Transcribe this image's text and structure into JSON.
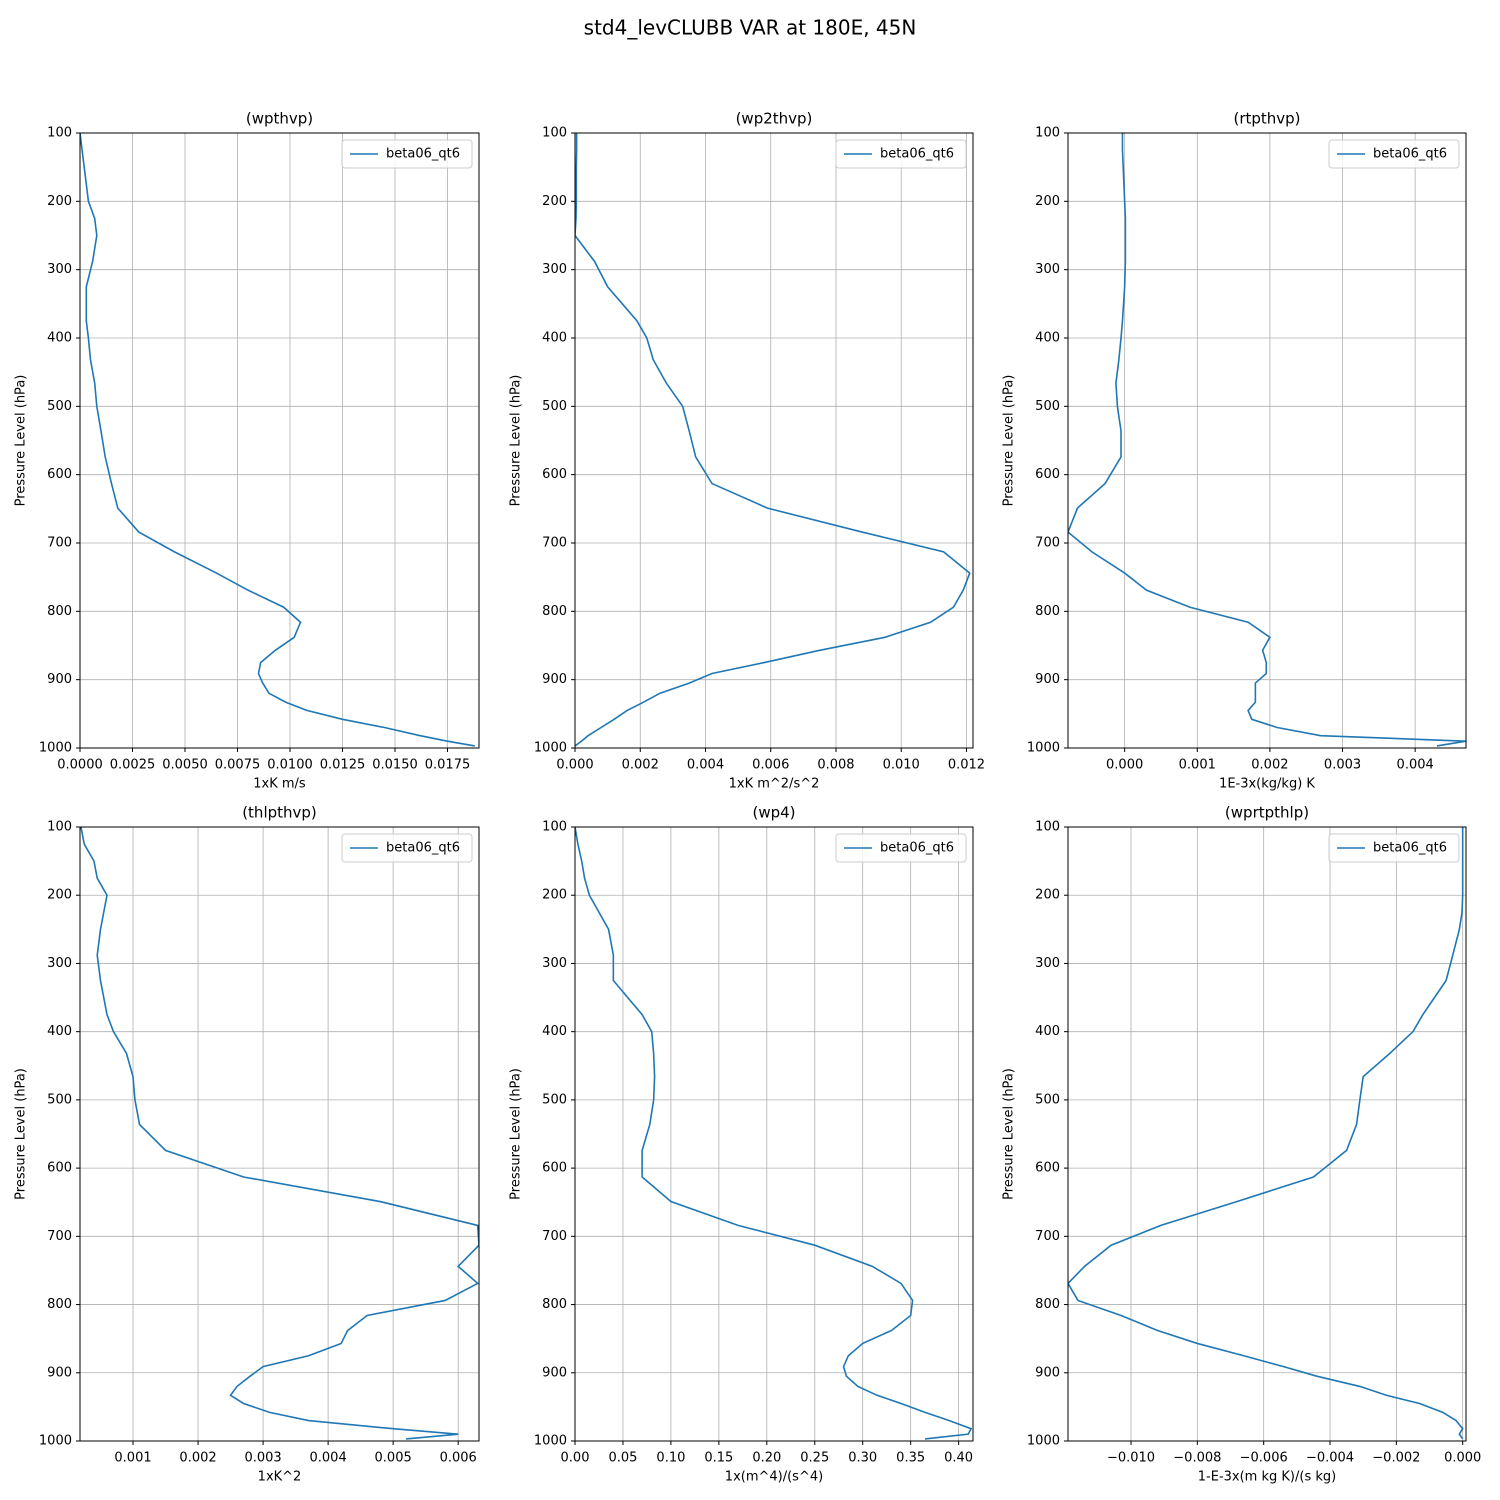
{
  "title": "std4_levCLUBB VAR at 180E, 45N",
  "chart_data": [
    {
      "type": "line",
      "title": "(wpthvp)",
      "xlabel": "1xK m/s",
      "ylabel": "Pressure Level (hPa)",
      "legend": "upper right",
      "grid": true,
      "y_inverted": true,
      "y": [
        100,
        125,
        150,
        175,
        200,
        225,
        250,
        288,
        325,
        375,
        400,
        432,
        466,
        500,
        536,
        574,
        613,
        649,
        684,
        713,
        744,
        769,
        794,
        816,
        838,
        857,
        875,
        891,
        905,
        920,
        933,
        945,
        958,
        970,
        982,
        990,
        997
      ],
      "series": [
        {
          "name": "beta06_qt6",
          "color": "#1f77b4",
          "values": [
            0,
            0.0001,
            0.0002,
            0.0003,
            0.0004,
            0.0007,
            0.0008,
            0.0006,
            0.0003,
            0.0003,
            0.0004,
            0.0005,
            0.0007,
            0.0008,
            0.001,
            0.0012,
            0.0015,
            0.0018,
            0.0028,
            0.0045,
            0.0065,
            0.008,
            0.0097,
            0.0105,
            0.0102,
            0.0093,
            0.0086,
            0.0085,
            0.0087,
            0.009,
            0.0098,
            0.0108,
            0.0125,
            0.0145,
            0.0162,
            0.0175,
            0.0188
          ]
        }
      ],
      "xlim": [
        0,
        0.019
      ],
      "xticks": [
        {
          "value": 0,
          "label": "0.0000"
        },
        0.0025,
        {
          "value": 0.005,
          "label": "0.0050"
        },
        0.0075,
        {
          "value": 0.01,
          "label": "0.0100"
        },
        0.0125,
        {
          "value": 0.015,
          "label": "0.0150"
        },
        0.0175
      ],
      "ylim": [
        100,
        1000
      ],
      "yticks": [
        100,
        200,
        300,
        400,
        500,
        600,
        700,
        800,
        900,
        1000
      ]
    },
    {
      "type": "line",
      "title": "(wp2thvp)",
      "xlabel": "1xK m^2/s^2",
      "ylabel": "Pressure Level (hPa)",
      "legend": "upper right",
      "grid": true,
      "y_inverted": true,
      "y": [
        100,
        125,
        150,
        175,
        200,
        225,
        250,
        288,
        325,
        375,
        400,
        432,
        466,
        500,
        536,
        574,
        613,
        649,
        684,
        713,
        744,
        769,
        794,
        816,
        838,
        857,
        875,
        891,
        905,
        920,
        933,
        945,
        958,
        970,
        982,
        990,
        997
      ],
      "series": [
        {
          "name": "beta06_qt6",
          "color": "#1f77b4",
          "values": [
            5e-05,
            5e-05,
            4e-05,
            4e-05,
            4e-05,
            3e-05,
            0,
            0.0006,
            0.001,
            0.0019,
            0.0022,
            0.0024,
            0.0028,
            0.0033,
            0.0035,
            0.0037,
            0.0042,
            0.0059,
            0.0088,
            0.0113,
            0.0121,
            0.0119,
            0.0116,
            0.0109,
            0.0095,
            0.0075,
            0.0058,
            0.0042,
            0.0035,
            0.0026,
            0.0021,
            0.0016,
            0.0012,
            0.0008,
            0.0004,
            0.0002,
            0
          ]
        }
      ],
      "xlim": [
        0,
        0.0122
      ],
      "xticks": [
        {
          "value": 0,
          "label": "0.000"
        },
        0.002,
        0.004,
        0.006,
        0.008,
        {
          "value": 0.01,
          "label": "0.010"
        },
        0.012
      ],
      "ylim": [
        100,
        1000
      ],
      "yticks": [
        100,
        200,
        300,
        400,
        500,
        600,
        700,
        800,
        900,
        1000
      ]
    },
    {
      "type": "line",
      "title": "(rtpthvp)",
      "xlabel": "1E-3x(kg/kg) K",
      "ylabel": "Pressure Level (hPa)",
      "legend": "upper right",
      "grid": true,
      "y_inverted": true,
      "y": [
        100,
        125,
        150,
        175,
        200,
        225,
        250,
        288,
        325,
        375,
        400,
        432,
        466,
        500,
        536,
        574,
        613,
        649,
        684,
        713,
        744,
        769,
        794,
        816,
        838,
        857,
        875,
        891,
        905,
        920,
        933,
        945,
        958,
        970,
        982,
        990,
        997
      ],
      "series": [
        {
          "name": "beta06_qt6",
          "color": "#1f77b4",
          "values": [
            -3e-05,
            -3e-05,
            -2e-05,
            -1e-05,
            0,
            1e-05,
            1e-05,
            1e-05,
            0,
            -3e-05,
            -5e-05,
            -8e-05,
            -0.00012,
            -0.0001,
            -5e-05,
            -5e-05,
            -0.00027,
            -0.00065,
            -0.00078,
            -0.00045,
            0,
            0.0003,
            0.0009,
            0.0017,
            0.002,
            0.0019,
            0.00195,
            0.00195,
            0.0018,
            0.0018,
            0.0018,
            0.0017,
            0.00175,
            0.0021,
            0.0027,
            0.0047,
            0.0043
          ]
        }
      ],
      "xlim": [
        -0.00078,
        0.0047
      ],
      "xticks": [
        {
          "value": 0,
          "label": "0.000"
        },
        0.001,
        0.002,
        0.003,
        0.004
      ],
      "ylim": [
        100,
        1000
      ],
      "yticks": [
        100,
        200,
        300,
        400,
        500,
        600,
        700,
        800,
        900,
        1000
      ]
    },
    {
      "type": "line",
      "title": "(thlpthvp)",
      "xlabel": "1xK^2",
      "ylabel": "Pressure Level (hPa)",
      "legend": "upper right",
      "grid": true,
      "y_inverted": true,
      "y": [
        100,
        125,
        150,
        175,
        200,
        225,
        250,
        288,
        325,
        375,
        400,
        432,
        466,
        500,
        536,
        574,
        613,
        649,
        684,
        713,
        744,
        769,
        794,
        816,
        838,
        857,
        875,
        891,
        905,
        920,
        933,
        945,
        958,
        970,
        982,
        990,
        997
      ],
      "series": [
        {
          "name": "beta06_qt6",
          "color": "#1f77b4",
          "values": [
            0.0002,
            0.00025,
            0.0004,
            0.00045,
            0.0006,
            0.00055,
            0.0005,
            0.00045,
            0.0005,
            0.0006,
            0.0007,
            0.0009,
            0.001,
            0.00103,
            0.0011,
            0.0015,
            0.0027,
            0.0048,
            0.0063,
            0.00632,
            0.006,
            0.0063,
            0.0058,
            0.0046,
            0.0043,
            0.0042,
            0.0037,
            0.003,
            0.0028,
            0.0026,
            0.0025,
            0.0027,
            0.0031,
            0.0037,
            0.005,
            0.006,
            0.0052
          ]
        }
      ],
      "xlim": [
        0.000185,
        0.00632
      ],
      "xticks": [
        0.001,
        0.002,
        0.003,
        0.004,
        0.005,
        0.006
      ],
      "ylim": [
        100,
        1000
      ],
      "yticks": [
        100,
        200,
        300,
        400,
        500,
        600,
        700,
        800,
        900,
        1000
      ]
    },
    {
      "type": "line",
      "title": "(wp4)",
      "xlabel": "1x(m^4)/(s^4)",
      "ylabel": "Pressure Level (hPa)",
      "legend": "upper right",
      "grid": true,
      "y_inverted": true,
      "y": [
        100,
        125,
        150,
        175,
        200,
        225,
        250,
        288,
        325,
        375,
        400,
        432,
        466,
        500,
        536,
        574,
        613,
        649,
        684,
        713,
        744,
        769,
        794,
        816,
        838,
        857,
        875,
        891,
        905,
        920,
        933,
        945,
        958,
        970,
        982,
        990,
        997
      ],
      "series": [
        {
          "name": "beta06_qt6",
          "color": "#1f77b4",
          "values": [
            0,
            0.003,
            0.007,
            0.01,
            0.015,
            0.025,
            0.035,
            0.04,
            0.04,
            0.07,
            0.08,
            0.082,
            0.083,
            0.082,
            0.078,
            0.07,
            0.07,
            0.1,
            0.17,
            0.25,
            0.31,
            0.34,
            0.352,
            0.35,
            0.33,
            0.3,
            0.285,
            0.28,
            0.283,
            0.295,
            0.315,
            0.34,
            0.365,
            0.39,
            0.413,
            0.41,
            0.365
          ]
        }
      ],
      "xlim": [
        0,
        0.415
      ],
      "xticks": [
        {
          "value": 0,
          "label": "0.00"
        },
        0.05,
        {
          "value": 0.1,
          "label": "0.10"
        },
        0.15,
        {
          "value": 0.2,
          "label": "0.20"
        },
        0.25,
        {
          "value": 0.3,
          "label": "0.30"
        },
        0.35,
        {
          "value": 0.4,
          "label": "0.40"
        }
      ],
      "ylim": [
        100,
        1000
      ],
      "yticks": [
        100,
        200,
        300,
        400,
        500,
        600,
        700,
        800,
        900,
        1000
      ]
    },
    {
      "type": "line",
      "title": "(wprtpthlp)",
      "xlabel": "1-E-3x(m kg K)/(s kg)",
      "ylabel": "Pressure Level (hPa)",
      "legend": "upper right",
      "grid": true,
      "y_inverted": true,
      "y": [
        100,
        125,
        150,
        175,
        200,
        225,
        250,
        288,
        325,
        375,
        400,
        432,
        466,
        500,
        536,
        574,
        613,
        649,
        684,
        713,
        744,
        769,
        794,
        816,
        838,
        857,
        875,
        891,
        905,
        920,
        933,
        945,
        958,
        970,
        982,
        990,
        997
      ],
      "series": [
        {
          "name": "beta06_qt6",
          "color": "#1f77b4",
          "values": [
            0,
            0,
            0,
            0,
            0,
            -2e-05,
            -0.0001,
            -0.0003,
            -0.0005,
            -0.0012,
            -0.0015,
            -0.0022,
            -0.003,
            -0.0031,
            -0.0032,
            -0.0035,
            -0.0045,
            -0.0068,
            -0.0091,
            -0.0106,
            -0.0114,
            -0.0119,
            -0.0116,
            -0.0103,
            -0.0092,
            -0.008,
            -0.0066,
            -0.0054,
            -0.0044,
            -0.0031,
            -0.0023,
            -0.0013,
            -0.0006,
            -0.0002,
            0,
            -0.0001,
            0
          ]
        }
      ],
      "xlim": [
        -0.0119,
        0.0001
      ],
      "xticks": [
        {
          "value": -0.01,
          "label": "−0.010"
        },
        {
          "value": -0.008,
          "label": "−0.008"
        },
        {
          "value": -0.006,
          "label": "−0.006"
        },
        {
          "value": -0.004,
          "label": "−0.004"
        },
        {
          "value": -0.002,
          "label": "−0.002"
        },
        {
          "value": 0,
          "label": "0.000"
        }
      ],
      "ylim": [
        100,
        1000
      ],
      "yticks": [
        100,
        200,
        300,
        400,
        500,
        600,
        700,
        800,
        900,
        1000
      ]
    }
  ]
}
